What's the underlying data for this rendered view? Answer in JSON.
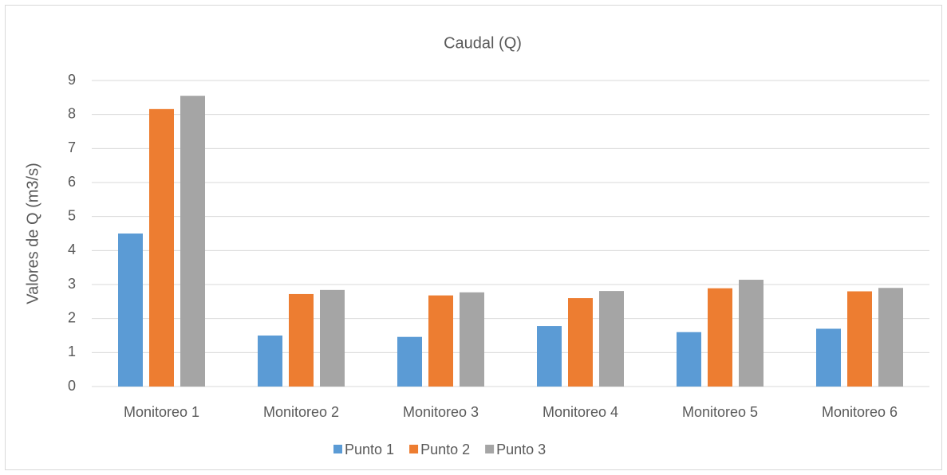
{
  "chart_data": {
    "type": "bar",
    "title": "Caudal (Q)",
    "y_label": "Valores de Q (m3/s)",
    "categories": [
      "Monitoreo 1",
      "Monitoreo 2",
      "Monitoreo 3",
      "Monitoreo 4",
      "Monitoreo 5",
      "Monitoreo 6"
    ],
    "series": [
      {
        "name": "Punto 1",
        "color": "#5b9bd5",
        "values": [
          4.5,
          1.5,
          1.46,
          1.78,
          1.6,
          1.7
        ]
      },
      {
        "name": "Punto 2",
        "color": "#ed7d31",
        "values": [
          8.16,
          2.72,
          2.68,
          2.6,
          2.89,
          2.8
        ]
      },
      {
        "name": "Punto 3",
        "color": "#a5a5a5",
        "values": [
          8.55,
          2.84,
          2.77,
          2.81,
          3.14,
          2.9
        ]
      }
    ],
    "ylim": [
      0,
      9
    ],
    "yticks": [
      0,
      1,
      2,
      3,
      4,
      5,
      6,
      7,
      8,
      9
    ],
    "grid": true,
    "legend": "bottom"
  }
}
